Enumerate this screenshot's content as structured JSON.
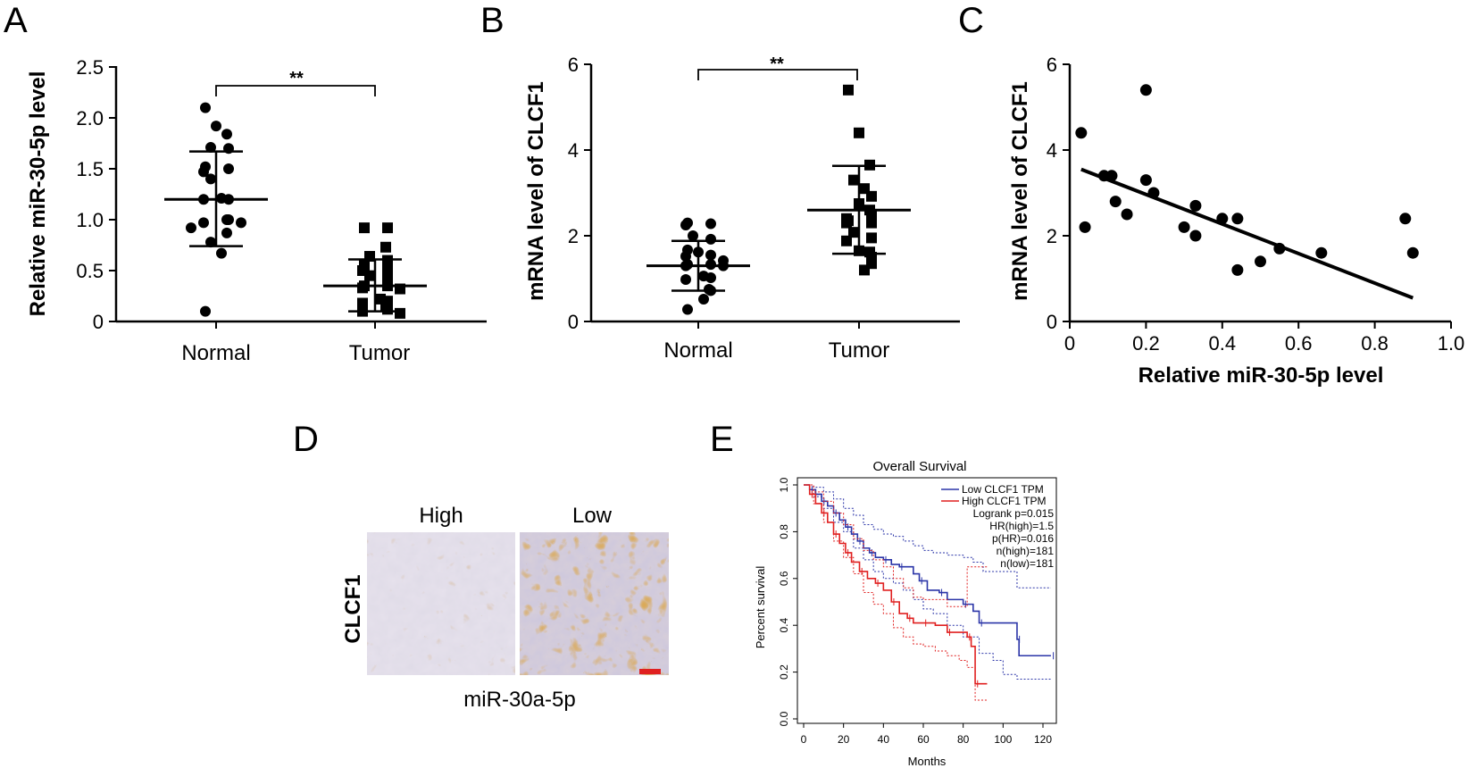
{
  "chart_data": [
    {
      "panel": "A",
      "type": "scatter",
      "ylabel": "Relative miR-30-5p level",
      "ylim": [
        0,
        2.5
      ],
      "yticks": [
        "0",
        "0.5",
        "1.0",
        "1.5",
        "2.0",
        "2.5"
      ],
      "categories": [
        "Normal",
        "Tumor"
      ],
      "significance": "**",
      "groups": [
        {
          "name": "Normal",
          "marker": "circle",
          "mean": 1.2,
          "sd_low": 0.74,
          "sd_high": 1.67,
          "values": [
            2.1,
            1.92,
            1.84,
            1.71,
            1.7,
            1.52,
            1.5,
            1.47,
            1.4,
            1.21,
            1.2,
            1.2,
            1.0,
            1.0,
            0.97,
            0.97,
            0.92,
            0.87,
            0.78,
            0.67,
            0.1
          ]
        },
        {
          "name": "Tumor",
          "marker": "square",
          "mean": 0.35,
          "sd_low": 0.1,
          "sd_high": 0.61,
          "values": [
            0.92,
            0.92,
            0.73,
            0.64,
            0.6,
            0.55,
            0.52,
            0.5,
            0.45,
            0.42,
            0.35,
            0.35,
            0.33,
            0.32,
            0.22,
            0.2,
            0.18,
            0.15,
            0.12,
            0.1,
            0.08
          ]
        }
      ]
    },
    {
      "panel": "B",
      "type": "scatter",
      "ylabel": "mRNA level of CLCF1",
      "ylim": [
        0,
        6
      ],
      "yticks": [
        "0",
        "2",
        "4",
        "6"
      ],
      "categories": [
        "Normal",
        "Tumor"
      ],
      "significance": "**",
      "groups": [
        {
          "name": "Normal",
          "marker": "circle",
          "mean": 1.3,
          "sd_low": 0.72,
          "sd_high": 1.88,
          "values": [
            2.3,
            2.28,
            2.25,
            2.0,
            1.92,
            1.67,
            1.62,
            1.55,
            1.52,
            1.42,
            1.33,
            1.33,
            1.3,
            1.3,
            1.06,
            1.02,
            0.98,
            0.75,
            0.72,
            0.52,
            0.28
          ]
        },
        {
          "name": "Tumor",
          "marker": "square",
          "mean": 2.6,
          "sd_low": 1.58,
          "sd_high": 3.63,
          "values": [
            5.4,
            4.4,
            3.65,
            3.3,
            3.1,
            2.92,
            2.75,
            2.6,
            2.45,
            2.4,
            2.35,
            2.3,
            2.3,
            2.08,
            1.95,
            1.88,
            1.65,
            1.62,
            1.5,
            1.2,
            1.35
          ]
        }
      ]
    },
    {
      "panel": "C",
      "type": "scatter",
      "xlabel": "Relative miR-30-5p level",
      "ylabel": "mRNA level of CLCF1",
      "xlim": [
        0,
        1.0
      ],
      "ylim": [
        0,
        6
      ],
      "xticks": [
        "0",
        "0.2",
        "0.4",
        "0.6",
        "0.8",
        "1.0"
      ],
      "yticks": [
        "0",
        "2",
        "4",
        "6"
      ],
      "points": [
        {
          "x": 0.03,
          "y": 4.4
        },
        {
          "x": 0.04,
          "y": 2.2
        },
        {
          "x": 0.09,
          "y": 3.4
        },
        {
          "x": 0.11,
          "y": 3.4
        },
        {
          "x": 0.12,
          "y": 2.8
        },
        {
          "x": 0.15,
          "y": 2.5
        },
        {
          "x": 0.2,
          "y": 5.4
        },
        {
          "x": 0.2,
          "y": 3.3
        },
        {
          "x": 0.22,
          "y": 3.0
        },
        {
          "x": 0.3,
          "y": 2.2
        },
        {
          "x": 0.33,
          "y": 2.7
        },
        {
          "x": 0.33,
          "y": 2.0
        },
        {
          "x": 0.4,
          "y": 2.4
        },
        {
          "x": 0.44,
          "y": 2.4
        },
        {
          "x": 0.44,
          "y": 1.2
        },
        {
          "x": 0.5,
          "y": 1.4
        },
        {
          "x": 0.55,
          "y": 1.7
        },
        {
          "x": 0.66,
          "y": 1.6
        },
        {
          "x": 0.88,
          "y": 2.4
        },
        {
          "x": 0.9,
          "y": 1.6
        }
      ],
      "regression": {
        "x0": 0.03,
        "y0": 3.55,
        "x1": 0.9,
        "y1": 0.55
      }
    },
    {
      "panel": "E",
      "type": "line",
      "title": "Overall Survival",
      "xlabel": "Months",
      "ylabel": "Percent survival",
      "xlim": [
        0,
        125
      ],
      "ylim": [
        0,
        1.0
      ],
      "xticks": [
        "0",
        "20",
        "40",
        "60",
        "80",
        "100",
        "120"
      ],
      "yticks": [
        "0.0",
        "0.2",
        "0.4",
        "0.6",
        "0.8",
        "1.0"
      ],
      "legend": [
        "Low CLCF1 TPM",
        "High CLCF1 TPM"
      ],
      "legend_position": "top-right",
      "stats": [
        "Logrank p=0.015",
        "HR(high)=1.5",
        "p(HR)=0.016",
        "n(high)=181",
        "n(low)=181"
      ],
      "series": [
        {
          "name": "Low CLCF1 TPM",
          "color": "#2b35a8",
          "points": [
            [
              0,
              1.0
            ],
            [
              3,
              0.98
            ],
            [
              6,
              0.96
            ],
            [
              9,
              0.93
            ],
            [
              12,
              0.91
            ],
            [
              15,
              0.88
            ],
            [
              18,
              0.85
            ],
            [
              21,
              0.82
            ],
            [
              24,
              0.79
            ],
            [
              27,
              0.76
            ],
            [
              30,
              0.73
            ],
            [
              33,
              0.71
            ],
            [
              36,
              0.69
            ],
            [
              40,
              0.68
            ],
            [
              44,
              0.66
            ],
            [
              48,
              0.65
            ],
            [
              55,
              0.62
            ],
            [
              58,
              0.59
            ],
            [
              62,
              0.55
            ],
            [
              68,
              0.54
            ],
            [
              72,
              0.51
            ],
            [
              80,
              0.49
            ],
            [
              85,
              0.46
            ],
            [
              88,
              0.41
            ],
            [
              100,
              0.41
            ],
            [
              107,
              0.34
            ],
            [
              108,
              0.27
            ],
            [
              124,
              0.27
            ]
          ],
          "upper": [
            [
              0,
              1.0
            ],
            [
              5,
              0.99
            ],
            [
              10,
              0.97
            ],
            [
              15,
              0.94
            ],
            [
              20,
              0.9
            ],
            [
              25,
              0.87
            ],
            [
              30,
              0.83
            ],
            [
              35,
              0.81
            ],
            [
              40,
              0.79
            ],
            [
              45,
              0.78
            ],
            [
              50,
              0.76
            ],
            [
              55,
              0.74
            ],
            [
              60,
              0.72
            ],
            [
              65,
              0.71
            ],
            [
              72,
              0.7
            ],
            [
              80,
              0.69
            ],
            [
              85,
              0.67
            ],
            [
              90,
              0.63
            ],
            [
              100,
              0.63
            ],
            [
              107,
              0.56
            ],
            [
              124,
              0.56
            ]
          ],
          "lower": [
            [
              0,
              1.0
            ],
            [
              5,
              0.95
            ],
            [
              10,
              0.9
            ],
            [
              15,
              0.84
            ],
            [
              20,
              0.8
            ],
            [
              25,
              0.73
            ],
            [
              30,
              0.68
            ],
            [
              35,
              0.63
            ],
            [
              40,
              0.6
            ],
            [
              45,
              0.58
            ],
            [
              50,
              0.55
            ],
            [
              55,
              0.51
            ],
            [
              60,
              0.47
            ],
            [
              65,
              0.45
            ],
            [
              72,
              0.4
            ],
            [
              80,
              0.35
            ],
            [
              88,
              0.28
            ],
            [
              95,
              0.25
            ],
            [
              100,
              0.19
            ],
            [
              107,
              0.17
            ],
            [
              124,
              0.17
            ]
          ]
        },
        {
          "name": "High CLCF1 TPM",
          "color": "#e02020",
          "points": [
            [
              0,
              1.0
            ],
            [
              3,
              0.96
            ],
            [
              6,
              0.92
            ],
            [
              9,
              0.88
            ],
            [
              12,
              0.84
            ],
            [
              15,
              0.79
            ],
            [
              18,
              0.75
            ],
            [
              21,
              0.71
            ],
            [
              24,
              0.67
            ],
            [
              28,
              0.63
            ],
            [
              32,
              0.6
            ],
            [
              36,
              0.58
            ],
            [
              40,
              0.55
            ],
            [
              44,
              0.5
            ],
            [
              48,
              0.45
            ],
            [
              52,
              0.43
            ],
            [
              55,
              0.41
            ],
            [
              60,
              0.41
            ],
            [
              66,
              0.4
            ],
            [
              72,
              0.37
            ],
            [
              78,
              0.37
            ],
            [
              82,
              0.35
            ],
            [
              84,
              0.31
            ],
            [
              86,
              0.15
            ],
            [
              92,
              0.15
            ]
          ],
          "upper": [
            [
              0,
              1.0
            ],
            [
              5,
              0.97
            ],
            [
              10,
              0.93
            ],
            [
              15,
              0.88
            ],
            [
              20,
              0.83
            ],
            [
              25,
              0.77
            ],
            [
              30,
              0.72
            ],
            [
              35,
              0.68
            ],
            [
              40,
              0.65
            ],
            [
              45,
              0.6
            ],
            [
              50,
              0.56
            ],
            [
              55,
              0.52
            ],
            [
              60,
              0.51
            ],
            [
              66,
              0.51
            ],
            [
              72,
              0.48
            ],
            [
              78,
              0.48
            ],
            [
              82,
              0.65
            ],
            [
              86,
              0.65
            ],
            [
              92,
              0.65
            ]
          ],
          "lower": [
            [
              0,
              1.0
            ],
            [
              5,
              0.92
            ],
            [
              10,
              0.84
            ],
            [
              15,
              0.76
            ],
            [
              20,
              0.69
            ],
            [
              25,
              0.62
            ],
            [
              30,
              0.54
            ],
            [
              35,
              0.49
            ],
            [
              40,
              0.45
            ],
            [
              45,
              0.39
            ],
            [
              50,
              0.35
            ],
            [
              55,
              0.32
            ],
            [
              60,
              0.31
            ],
            [
              66,
              0.29
            ],
            [
              72,
              0.27
            ],
            [
              78,
              0.25
            ],
            [
              82,
              0.22
            ],
            [
              86,
              0.08
            ],
            [
              92,
              0.08
            ]
          ]
        }
      ]
    }
  ],
  "panels": {
    "a": {
      "letter": "A"
    },
    "b": {
      "letter": "B"
    },
    "c": {
      "letter": "C"
    },
    "d": {
      "letter": "D",
      "row_label": "CLCF1",
      "col_high": "High",
      "col_low": "Low",
      "caption": "miR-30a-5p",
      "scale_bar_color": "#e02020"
    },
    "e": {
      "letter": "E"
    }
  }
}
